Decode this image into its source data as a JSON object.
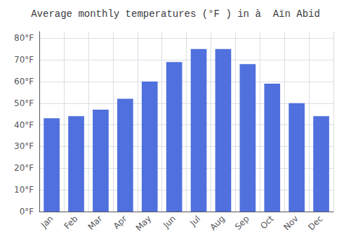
{
  "chart_data": {
    "type": "bar",
    "title": "Average monthly temperatures (°F ) in à  Aïn Abid",
    "categories": [
      "Jan",
      "Feb",
      "Mar",
      "Apr",
      "May",
      "Jun",
      "Jul",
      "Aug",
      "Sep",
      "Oct",
      "Nov",
      "Dec"
    ],
    "values": [
      43,
      44,
      47,
      52,
      60,
      69,
      75,
      75,
      68,
      59,
      50,
      44
    ],
    "ylim": [
      0,
      83
    ],
    "yticks": [
      {
        "value": 0,
        "label": "0°F"
      },
      {
        "value": 10,
        "label": "10°F"
      },
      {
        "value": 20,
        "label": "20°F"
      },
      {
        "value": 30,
        "label": "30°F"
      },
      {
        "value": 40,
        "label": "40°F"
      },
      {
        "value": 50,
        "label": "50°F"
      },
      {
        "value": 60,
        "label": "60°F"
      },
      {
        "value": 70,
        "label": "70°F"
      },
      {
        "value": 80,
        "label": "80°F"
      }
    ],
    "grid": true
  }
}
